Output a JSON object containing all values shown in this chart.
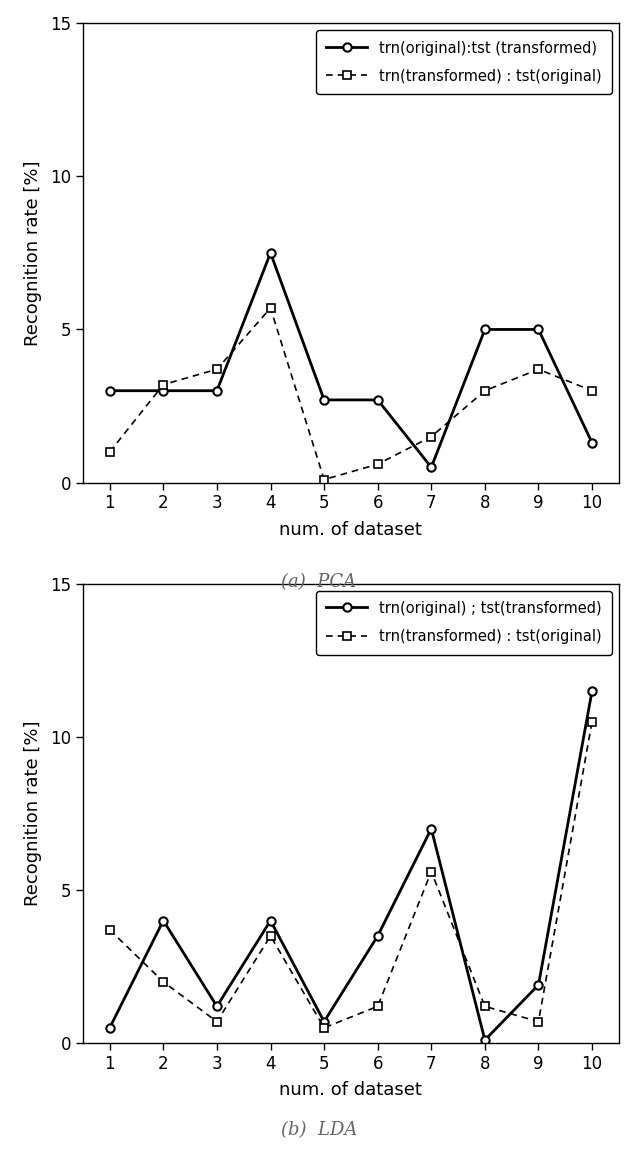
{
  "x": [
    1,
    2,
    3,
    4,
    5,
    6,
    7,
    8,
    9,
    10
  ],
  "pca_solid": [
    3.0,
    3.0,
    3.0,
    7.5,
    2.7,
    2.7,
    0.5,
    5.0,
    5.0,
    1.3
  ],
  "pca_dashed": [
    1.0,
    3.2,
    3.7,
    5.7,
    0.1,
    0.6,
    1.5,
    3.0,
    3.7,
    3.0
  ],
  "lda_solid": [
    0.5,
    4.0,
    1.2,
    4.0,
    0.7,
    3.5,
    7.0,
    0.1,
    1.9,
    11.5
  ],
  "lda_dashed": [
    3.7,
    2.0,
    0.7,
    3.5,
    0.5,
    1.2,
    5.6,
    1.2,
    0.7,
    10.5
  ],
  "ylim": [
    0,
    15
  ],
  "yticks": [
    0,
    5,
    10,
    15
  ],
  "xlabel": "num. of dataset",
  "ylabel": "Recognition rate [%]",
  "legend_solid_pca": "trn(original):tst (transformed)",
  "legend_dashed_pca": "trn(transformed) : tst(original)",
  "legend_solid_lda": "trn(original) ; tst(transformed)",
  "legend_dashed_lda": "trn(transformed) : tst(original)",
  "caption_a": "(a)  PCA",
  "caption_b": "(b)  LDA",
  "line_color": "#000000",
  "bg_color": "#ffffff"
}
